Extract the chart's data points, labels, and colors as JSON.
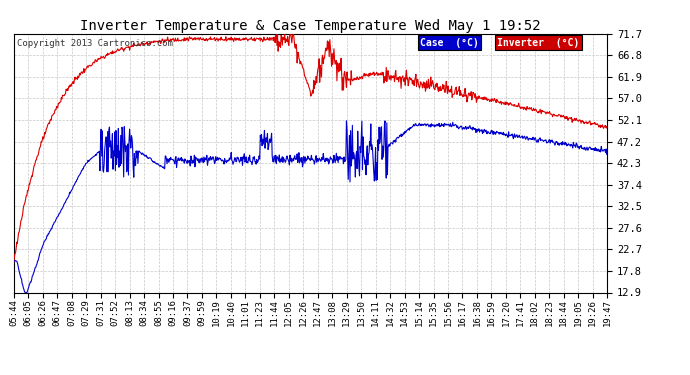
{
  "title": "Inverter Temperature & Case Temperature Wed May 1 19:52",
  "copyright": "Copyright 2013 Cartronics.com",
  "background_color": "#ffffff",
  "plot_bg_color": "#ffffff",
  "grid_color": "#c8c8c8",
  "yticks": [
    12.9,
    17.8,
    22.7,
    27.6,
    32.5,
    37.4,
    42.3,
    47.2,
    52.1,
    57.0,
    61.9,
    66.8,
    71.7
  ],
  "ylim": [
    12.9,
    71.7
  ],
  "xtick_labels": [
    "05:44",
    "06:05",
    "06:26",
    "06:47",
    "07:08",
    "07:29",
    "07:31",
    "07:52",
    "08:13",
    "08:34",
    "08:55",
    "09:16",
    "09:37",
    "09:59",
    "10:19",
    "10:40",
    "11:01",
    "11:23",
    "11:44",
    "12:05",
    "12:26",
    "12:47",
    "13:08",
    "13:29",
    "13:50",
    "14:11",
    "14:32",
    "14:53",
    "15:14",
    "15:35",
    "15:56",
    "16:17",
    "16:38",
    "16:59",
    "17:20",
    "17:41",
    "18:02",
    "18:23",
    "18:44",
    "19:05",
    "19:26",
    "19:47"
  ],
  "legend_case_color": "#0000cc",
  "legend_inverter_color": "#cc0000",
  "legend_case_label": "Case  (°C)",
  "legend_inverter_label": "Inverter  (°C)",
  "line_red_color": "#dd0000",
  "line_blue_color": "#0000cc",
  "n_points": 1000,
  "figwidth": 6.9,
  "figheight": 3.75,
  "dpi": 100
}
